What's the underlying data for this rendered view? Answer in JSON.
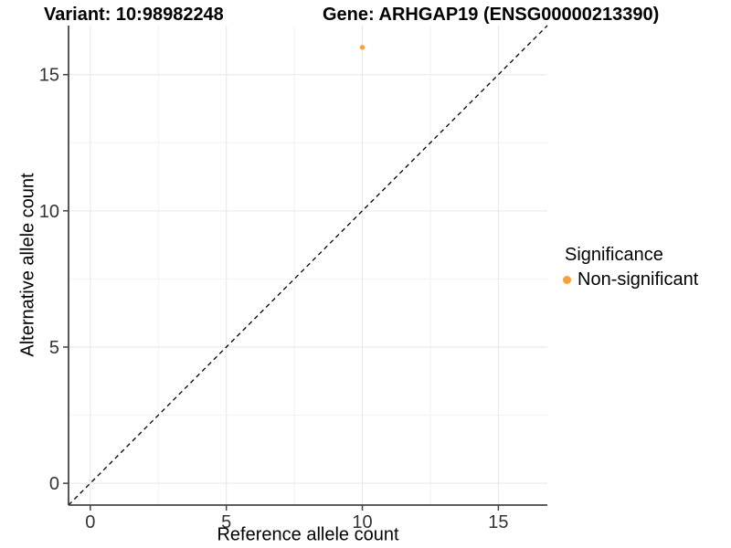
{
  "titles": {
    "left": "Variant: 10:98982248",
    "right": "Gene: ARHGAP19 (ENSG00000213390)"
  },
  "chart_data": {
    "type": "scatter",
    "xlabel": "Reference allele count",
    "ylabel": "Alternative allele count",
    "xlim": [
      -0.8,
      16.8
    ],
    "ylim": [
      -0.8,
      16.8
    ],
    "xticks": [
      0,
      5,
      10,
      15
    ],
    "yticks": [
      0,
      5,
      10,
      15
    ],
    "minor_xticks": [
      2.5,
      7.5,
      12.5
    ],
    "minor_yticks": [
      2.5,
      7.5,
      12.5
    ],
    "grid": "on",
    "points": [
      {
        "x": 10,
        "y": 16,
        "series": "Non-significant"
      }
    ],
    "reference_line": {
      "slope": 1,
      "intercept": 0,
      "style": "dashed",
      "color": "#000000"
    },
    "colors": {
      "point": "#F9A03C",
      "grid_major": "#E6E6E6",
      "grid_minor": "#F2F2F2",
      "axis_line": "#444444",
      "tick_label": "#333333"
    },
    "legend": {
      "title": "Significance",
      "position": "right",
      "items": [
        {
          "label": "Non-significant",
          "color": "#F9A03C"
        }
      ]
    }
  }
}
